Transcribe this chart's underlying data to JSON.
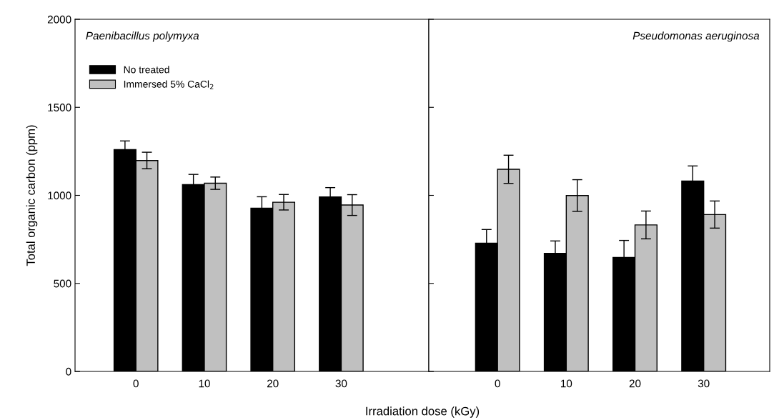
{
  "chart_data": [
    {
      "type": "bar",
      "title": "Paenibacillus polymyxa",
      "xlabel": "Irradiation dose (kGy)",
      "ylabel": "Total organic carbon (ppm)",
      "categories": [
        "0",
        "10",
        "20",
        "30"
      ],
      "ylim": [
        0,
        2000
      ],
      "yticks": [
        0,
        500,
        1000,
        1500,
        2000
      ],
      "legend": "top left",
      "series": [
        {
          "name": "No treated",
          "color": "#000000",
          "values": [
            1260,
            1061,
            927,
            991
          ],
          "errors": [
            49,
            58,
            65,
            53
          ]
        },
        {
          "name": "Immersed 5% CaCl$_{2}$",
          "color": "#c0c0c0",
          "values": [
            1198,
            1069,
            961,
            945
          ],
          "errors": [
            47,
            35,
            44,
            59
          ]
        }
      ]
    },
    {
      "type": "bar",
      "title": "Pseudomonas aeruginosa",
      "categories": [
        "0",
        "10",
        "20",
        "30"
      ],
      "ylim": [
        0,
        2000
      ],
      "yticks": [
        0,
        500,
        1000,
        1500,
        2000
      ],
      "tick_labels": "x",
      "series": [
        {
          "color": "#000000",
          "values": [
            728,
            671,
            647,
            1081
          ],
          "errors": [
            78,
            70,
            97,
            86
          ]
        },
        {
          "color": "#c0c0c0",
          "values": [
            1148,
            999,
            832,
            891
          ],
          "errors": [
            80,
            90,
            79,
            77
          ]
        }
      ]
    }
  ]
}
